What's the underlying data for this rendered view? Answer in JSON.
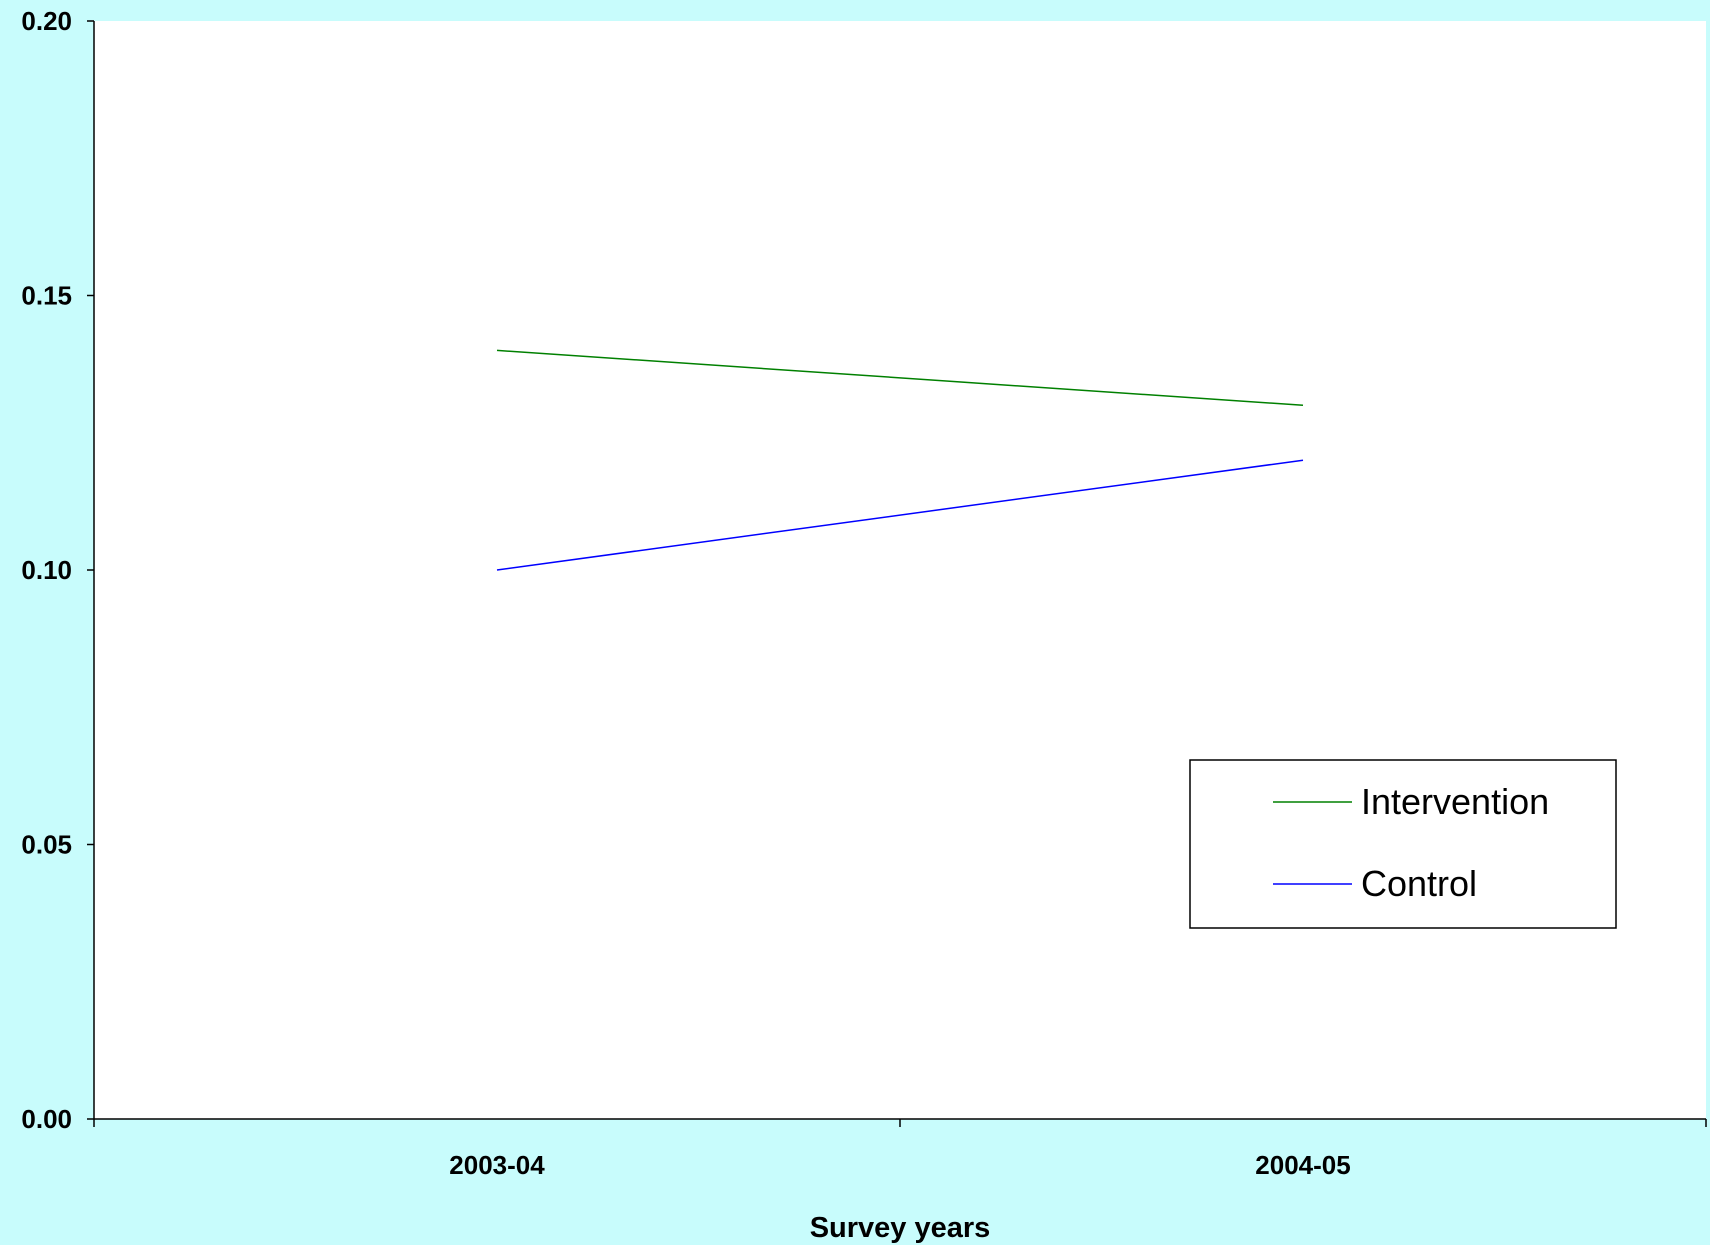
{
  "chart_data": {
    "type": "line",
    "categories": [
      "2003-04",
      "2004-05"
    ],
    "series": [
      {
        "name": "Intervention",
        "values": [
          0.14,
          0.13
        ],
        "color": "#008000"
      },
      {
        "name": "Control",
        "values": [
          0.1,
          0.12
        ],
        "color": "#0000ff"
      }
    ],
    "title": "",
    "xlabel": "Survey years",
    "ylabel": "",
    "ylim": [
      0,
      0.2
    ],
    "yticks": [
      "0.00",
      "0.05",
      "0.10",
      "0.15",
      "0.20"
    ],
    "ytick_values": [
      0,
      0.05,
      0.1,
      0.15,
      0.2
    ],
    "grid": false,
    "legend_position": "bottom-right",
    "background_color": "#c8fcfc",
    "plot_background_color": "#ffffff"
  }
}
